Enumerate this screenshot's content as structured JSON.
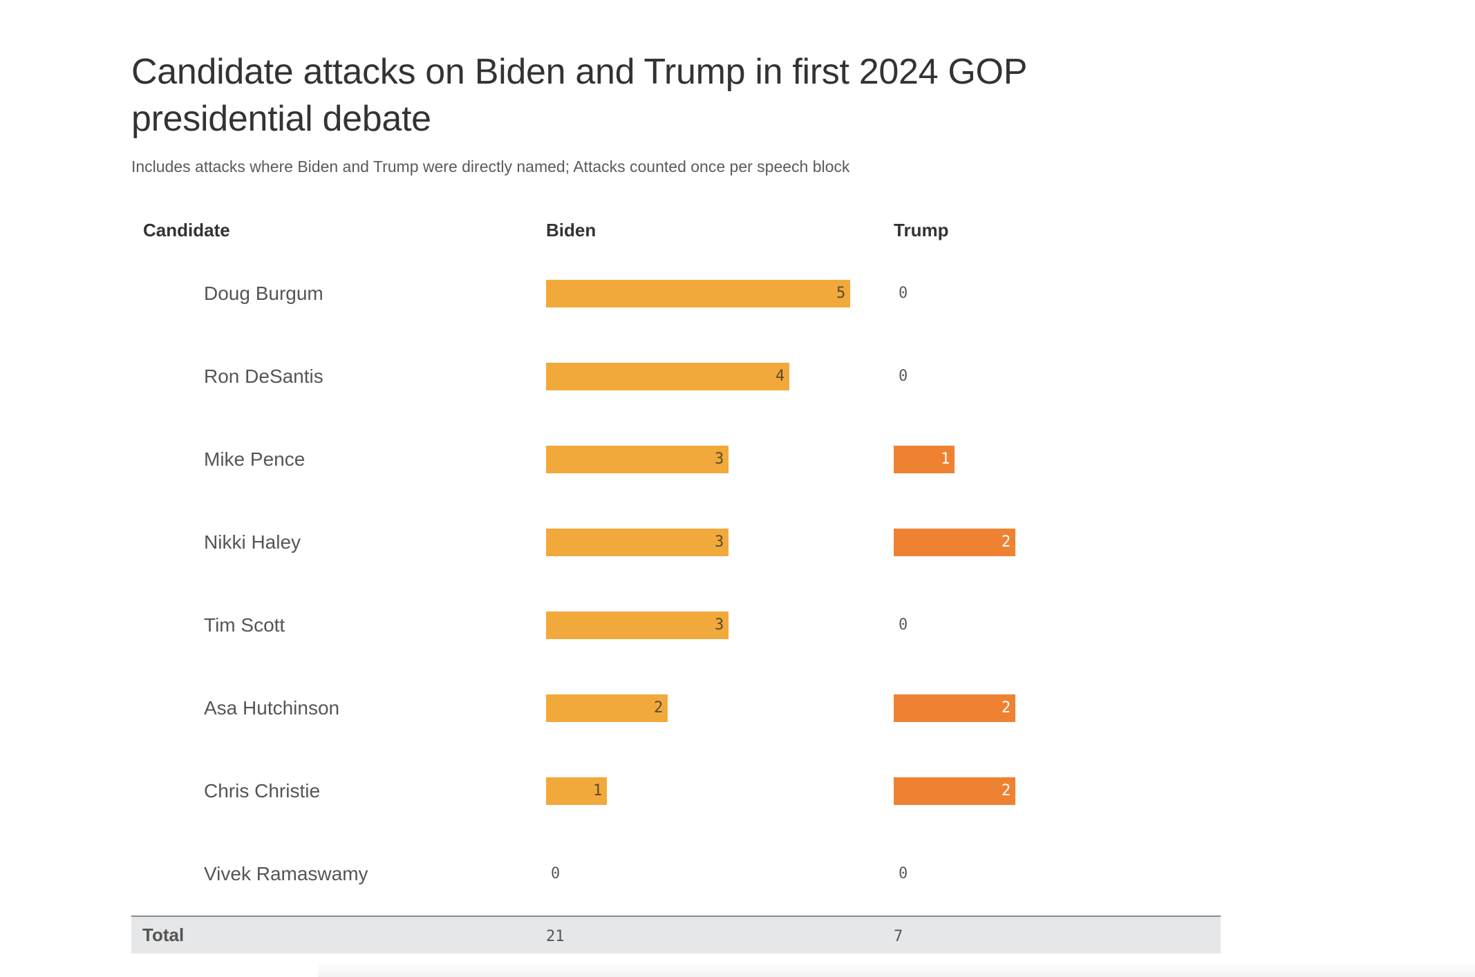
{
  "chart_data": {
    "type": "table",
    "title": "Candidate attacks on Biden and Trump in first 2024 GOP presidential debate",
    "subtitle": "Includes attacks where Biden and Trump were directly named; Attacks counted once per speech block",
    "columns": [
      "Candidate",
      "Biden",
      "Trump"
    ],
    "series_colors": {
      "Biden": "#f2a93b",
      "Trump": "#ef8232"
    },
    "rows": [
      {
        "candidate": "Doug Burgum",
        "biden": 5,
        "trump": 0
      },
      {
        "candidate": "Ron DeSantis",
        "biden": 4,
        "trump": 0
      },
      {
        "candidate": "Mike Pence",
        "biden": 3,
        "trump": 1
      },
      {
        "candidate": "Nikki Haley",
        "biden": 3,
        "trump": 2
      },
      {
        "candidate": "Tim Scott",
        "biden": 3,
        "trump": 0
      },
      {
        "candidate": "Asa Hutchinson",
        "biden": 2,
        "trump": 2
      },
      {
        "candidate": "Chris Christie",
        "biden": 1,
        "trump": 2
      },
      {
        "candidate": "Vivek Ramaswamy",
        "biden": 0,
        "trump": 0
      }
    ],
    "total": {
      "label": "Total",
      "biden": 21,
      "trump": 7
    },
    "bar_scale_max": 5
  }
}
